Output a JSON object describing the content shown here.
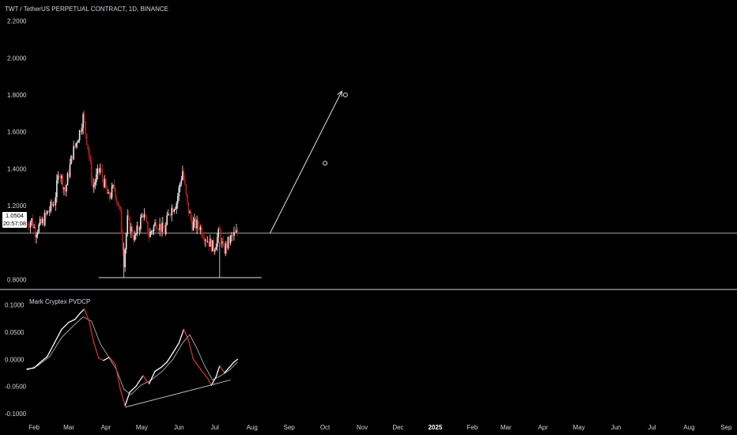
{
  "header": {
    "title": "TWT / TetherUS PERPETUAL CONTRACT, 1D, BINANCE"
  },
  "price_badge": {
    "price": "1.0504",
    "countdown": "20:57:08"
  },
  "indicator": {
    "title": "Mark Cryptex PVDCP"
  },
  "colors": {
    "background": "#000000",
    "up_candle": "#e8e8e8",
    "down_candle": "#b71c1c",
    "line": "#e0e0e0",
    "indicator_fast": "#ffffff",
    "indicator_slow": "#9e9e9e",
    "indicator_down": "#d32f2f",
    "separator": "#d1d4dc"
  },
  "chart_data": [
    {
      "type": "candlestick",
      "title": "TWT / TetherUS PERPETUAL CONTRACT, 1D, BINANCE",
      "x_axis": {
        "type": "date",
        "tick_labels": [
          "Feb",
          "Mar",
          "Apr",
          "May",
          "Jun",
          "Jul",
          "Aug",
          "Sep",
          "Oct",
          "Nov",
          "Dec",
          "2025",
          "Feb",
          "Mar",
          "Apr",
          "May",
          "Jun",
          "Jul",
          "Aug",
          "Sep"
        ],
        "range": [
          "2024-01-26",
          "2025-09-10"
        ]
      },
      "y_axis": {
        "tick_labels": [
          "2.2000",
          "2.0000",
          "1.8000",
          "1.6000",
          "1.4000",
          "1.2000",
          "0.8000"
        ],
        "tick_values": [
          2.2,
          2.0,
          1.8,
          1.6,
          1.4,
          1.2,
          0.8
        ],
        "range": [
          0.78,
          2.25
        ]
      },
      "current_price": 1.0504,
      "anchor_closes": [
        [
          "2024-01-26",
          1.1
        ],
        [
          "2024-01-30",
          1.12
        ],
        [
          "2024-02-02",
          1.06
        ],
        [
          "2024-02-08",
          1.11
        ],
        [
          "2024-02-12",
          1.16
        ],
        [
          "2024-02-18",
          1.22
        ],
        [
          "2024-02-22",
          1.39
        ],
        [
          "2024-02-27",
          1.28
        ],
        [
          "2024-03-04",
          1.48
        ],
        [
          "2024-03-10",
          1.6
        ],
        [
          "2024-03-13",
          1.68
        ],
        [
          "2024-03-17",
          1.52
        ],
        [
          "2024-03-21",
          1.3
        ],
        [
          "2024-03-27",
          1.4
        ],
        [
          "2024-04-03",
          1.24
        ],
        [
          "2024-04-08",
          1.3
        ],
        [
          "2024-04-13",
          1.15
        ],
        [
          "2024-04-16",
          0.9
        ],
        [
          "2024-04-19",
          1.12
        ],
        [
          "2024-04-25",
          1.02
        ],
        [
          "2024-05-02",
          1.16
        ],
        [
          "2024-05-07",
          1.04
        ],
        [
          "2024-05-13",
          1.11
        ],
        [
          "2024-05-20",
          1.06
        ],
        [
          "2024-05-24",
          1.17
        ],
        [
          "2024-05-30",
          1.22
        ],
        [
          "2024-06-04",
          1.39
        ],
        [
          "2024-06-08",
          1.2
        ],
        [
          "2024-06-12",
          1.1
        ],
        [
          "2024-06-18",
          1.09
        ],
        [
          "2024-06-24",
          1.02
        ],
        [
          "2024-06-30",
          0.97
        ],
        [
          "2024-07-05",
          1.06
        ],
        [
          "2024-07-08",
          0.95
        ],
        [
          "2024-07-12",
          1.0
        ],
        [
          "2024-07-17",
          1.04
        ],
        [
          "2024-07-20",
          1.05
        ]
      ],
      "annotations": [
        {
          "type": "horizontal_line",
          "price": 1.0504,
          "label": "current price"
        },
        {
          "type": "support_segment",
          "price": 0.81,
          "from": "2024-03-26",
          "to": "2024-08-09"
        },
        {
          "type": "arrow",
          "from": [
            "2024-08-16",
            1.05
          ],
          "to": [
            "2024-10-15",
            1.82
          ]
        },
        {
          "type": "circle_marker",
          "at": [
            "2024-10-01",
            1.43
          ]
        },
        {
          "type": "circle_marker",
          "at": [
            "2024-10-18",
            1.8
          ]
        }
      ]
    },
    {
      "type": "line",
      "title": "Mark Cryptex PVDCP",
      "y_axis": {
        "tick_labels": [
          "0.1000",
          "0.0500",
          "0.0000",
          "-0.0500",
          "-0.1000"
        ],
        "tick_values": [
          0.1,
          0.05,
          0.0,
          -0.05,
          -0.1
        ],
        "range": [
          -0.11,
          0.105
        ]
      },
      "series": [
        {
          "role": "fast",
          "color_up": "#ffffff",
          "color_down": "#d32f2f",
          "points": [
            [
              "2024-01-26",
              -0.018
            ],
            [
              "2024-02-01",
              -0.016
            ],
            [
              "2024-02-06",
              -0.006
            ],
            [
              "2024-02-12",
              0.005
            ],
            [
              "2024-02-18",
              0.03
            ],
            [
              "2024-02-24",
              0.055
            ],
            [
              "2024-03-01",
              0.068
            ],
            [
              "2024-03-06",
              0.073
            ],
            [
              "2024-03-11",
              0.086
            ],
            [
              "2024-03-14",
              0.092
            ],
            [
              "2024-03-18",
              0.07
            ],
            [
              "2024-03-22",
              0.03
            ],
            [
              "2024-03-26",
              0.002
            ],
            [
              "2024-03-30",
              -0.002
            ],
            [
              "2024-04-04",
              0.004
            ],
            [
              "2024-04-09",
              -0.01
            ],
            [
              "2024-04-13",
              -0.055
            ],
            [
              "2024-04-17",
              -0.085
            ],
            [
              "2024-04-21",
              -0.06
            ],
            [
              "2024-04-26",
              -0.05
            ],
            [
              "2024-05-02",
              -0.03
            ],
            [
              "2024-05-07",
              -0.045
            ],
            [
              "2024-05-12",
              -0.022
            ],
            [
              "2024-05-17",
              -0.015
            ],
            [
              "2024-05-22",
              -0.005
            ],
            [
              "2024-05-27",
              0.012
            ],
            [
              "2024-06-01",
              0.03
            ],
            [
              "2024-06-05",
              0.055
            ],
            [
              "2024-06-09",
              0.035
            ],
            [
              "2024-06-13",
              0.0
            ],
            [
              "2024-06-19",
              -0.018
            ],
            [
              "2024-06-25",
              -0.035
            ],
            [
              "2024-06-28",
              -0.048
            ],
            [
              "2024-07-02",
              -0.032
            ],
            [
              "2024-07-05",
              -0.012
            ],
            [
              "2024-07-09",
              -0.025
            ],
            [
              "2024-07-13",
              -0.015
            ],
            [
              "2024-07-17",
              -0.005
            ],
            [
              "2024-07-20",
              0.0
            ]
          ]
        },
        {
          "role": "slow",
          "color": "#9e9e9e",
          "points": [
            [
              "2024-01-26",
              -0.02
            ],
            [
              "2024-02-04",
              -0.012
            ],
            [
              "2024-02-14",
              0.005
            ],
            [
              "2024-02-24",
              0.04
            ],
            [
              "2024-03-05",
              0.062
            ],
            [
              "2024-03-13",
              0.078
            ],
            [
              "2024-03-20",
              0.07
            ],
            [
              "2024-03-27",
              0.03
            ],
            [
              "2024-04-03",
              0.005
            ],
            [
              "2024-04-10",
              -0.02
            ],
            [
              "2024-04-16",
              -0.055
            ],
            [
              "2024-04-22",
              -0.065
            ],
            [
              "2024-04-30",
              -0.048
            ],
            [
              "2024-05-09",
              -0.038
            ],
            [
              "2024-05-18",
              -0.022
            ],
            [
              "2024-05-27",
              0.0
            ],
            [
              "2024-06-04",
              0.03
            ],
            [
              "2024-06-10",
              0.045
            ],
            [
              "2024-06-16",
              0.02
            ],
            [
              "2024-06-22",
              -0.01
            ],
            [
              "2024-06-29",
              -0.038
            ],
            [
              "2024-07-06",
              -0.03
            ],
            [
              "2024-07-13",
              -0.02
            ],
            [
              "2024-07-20",
              -0.005
            ]
          ]
        }
      ],
      "annotations": [
        {
          "type": "trendline",
          "from": [
            "2024-04-17",
            -0.088
          ],
          "to": [
            "2024-07-14",
            -0.038
          ]
        }
      ]
    }
  ]
}
